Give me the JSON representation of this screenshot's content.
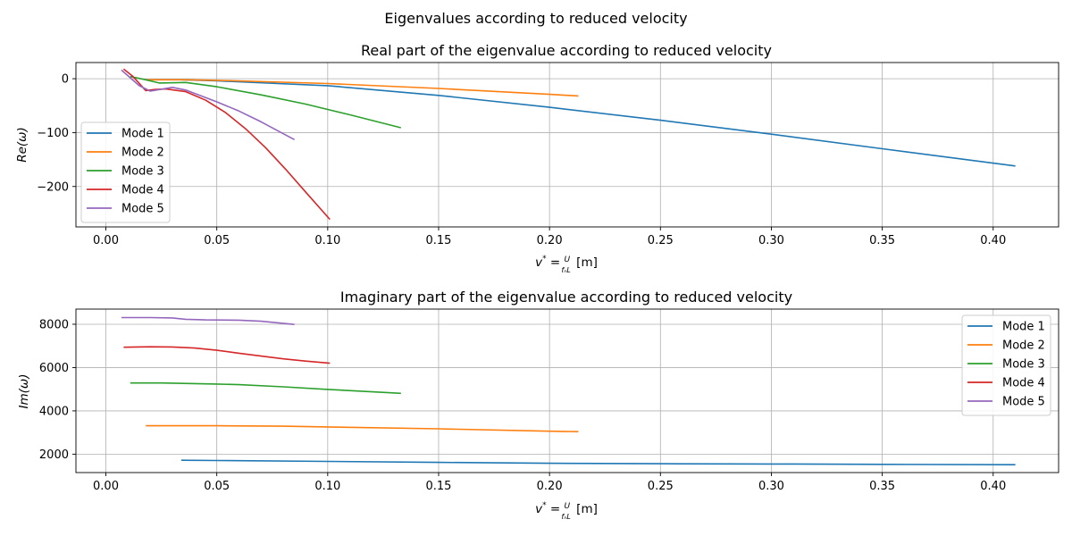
{
  "figure": {
    "suptitle": "Eigenvalues according to reduced velocity"
  },
  "chart_data": [
    {
      "type": "line",
      "title": "Real part of the eigenvalue according to reduced velocity",
      "xlabel": "v* = U / (f_n L) [m]",
      "ylabel": "Re(ω)",
      "xlim": [
        -0.0135,
        0.4295
      ],
      "ylim": [
        -275,
        30
      ],
      "xticks": [
        0.0,
        0.05,
        0.1,
        0.15,
        0.2,
        0.25,
        0.3,
        0.35,
        0.4
      ],
      "xtick_labels": [
        "0.00",
        "0.05",
        "0.10",
        "0.15",
        "0.20",
        "0.25",
        "0.30",
        "0.35",
        "0.40"
      ],
      "yticks": [
        0,
        -100,
        -200
      ],
      "ytick_labels": [
        "0",
        "−100",
        "−200"
      ],
      "grid": true,
      "legend": "center-left",
      "series": [
        {
          "name": "Mode 1",
          "color": "#1f77b4",
          "x": [
            0.034,
            0.05,
            0.1,
            0.15,
            0.2,
            0.25,
            0.3,
            0.35,
            0.41
          ],
          "y": [
            -2,
            -4,
            -13,
            -31,
            -53,
            -77,
            -103,
            -130,
            -162
          ]
        },
        {
          "name": "Mode 2",
          "color": "#ff7f0e",
          "x": [
            0.018,
            0.036,
            0.05,
            0.1,
            0.15,
            0.2,
            0.213
          ],
          "y": [
            -2,
            -2,
            -3,
            -9,
            -18,
            -29,
            -32
          ]
        },
        {
          "name": "Mode 3",
          "color": "#2ca02c",
          "x": [
            0.011,
            0.018,
            0.024,
            0.036,
            0.05,
            0.07,
            0.09,
            0.11,
            0.133
          ],
          "y": [
            4,
            -2,
            -8,
            -7,
            -15,
            -30,
            -47,
            -67,
            -91
          ]
        },
        {
          "name": "Mode 4",
          "color": "#d62728",
          "x": [
            0.008,
            0.012,
            0.018,
            0.022,
            0.027,
            0.036,
            0.045,
            0.054,
            0.063,
            0.072,
            0.081,
            0.09,
            0.101
          ],
          "y": [
            18,
            5,
            -22,
            -20,
            -19,
            -24,
            -40,
            -63,
            -93,
            -128,
            -168,
            -210,
            -261
          ]
        },
        {
          "name": "Mode 5",
          "color": "#9467bd",
          "x": [
            0.007,
            0.015,
            0.02,
            0.03,
            0.036,
            0.05,
            0.06,
            0.07,
            0.085
          ],
          "y": [
            16,
            -13,
            -23,
            -16,
            -21,
            -43,
            -60,
            -80,
            -113
          ]
        }
      ]
    },
    {
      "type": "line",
      "title": "Imaginary part of the eigenvalue according to reduced velocity",
      "xlabel": "v* = U / (f_n L) [m]",
      "ylabel": "Im(ω)",
      "xlim": [
        -0.0135,
        0.4295
      ],
      "ylim": [
        1150,
        8700
      ],
      "xticks": [
        0.0,
        0.05,
        0.1,
        0.15,
        0.2,
        0.25,
        0.3,
        0.35,
        0.4
      ],
      "xtick_labels": [
        "0.00",
        "0.05",
        "0.10",
        "0.15",
        "0.20",
        "0.25",
        "0.30",
        "0.35",
        "0.40"
      ],
      "yticks": [
        2000,
        4000,
        6000,
        8000
      ],
      "ytick_labels": [
        "2000",
        "4000",
        "6000",
        "8000"
      ],
      "grid": true,
      "legend": "top-right",
      "series": [
        {
          "name": "Mode 1",
          "color": "#1f77b4",
          "x": [
            0.034,
            0.05,
            0.1,
            0.15,
            0.2,
            0.25,
            0.3,
            0.35,
            0.41
          ],
          "y": [
            1720,
            1705,
            1665,
            1620,
            1580,
            1560,
            1545,
            1530,
            1515
          ]
        },
        {
          "name": "Mode 2",
          "color": "#ff7f0e",
          "x": [
            0.018,
            0.05,
            0.08,
            0.1,
            0.15,
            0.2,
            0.213
          ],
          "y": [
            3310,
            3310,
            3290,
            3260,
            3170,
            3060,
            3040
          ]
        },
        {
          "name": "Mode 3",
          "color": "#2ca02c",
          "x": [
            0.011,
            0.025,
            0.05,
            0.06,
            0.08,
            0.1,
            0.12,
            0.133
          ],
          "y": [
            5290,
            5290,
            5240,
            5210,
            5110,
            4990,
            4880,
            4810
          ]
        },
        {
          "name": "Mode 4",
          "color": "#d62728",
          "x": [
            0.008,
            0.02,
            0.03,
            0.04,
            0.05,
            0.06,
            0.07,
            0.08,
            0.09,
            0.101
          ],
          "y": [
            6940,
            6960,
            6950,
            6900,
            6800,
            6660,
            6530,
            6400,
            6300,
            6200
          ]
        },
        {
          "name": "Mode 5",
          "color": "#9467bd",
          "x": [
            0.007,
            0.02,
            0.03,
            0.036,
            0.045,
            0.06,
            0.07,
            0.085
          ],
          "y": [
            8310,
            8310,
            8290,
            8230,
            8200,
            8190,
            8140,
            7990
          ]
        }
      ]
    }
  ]
}
